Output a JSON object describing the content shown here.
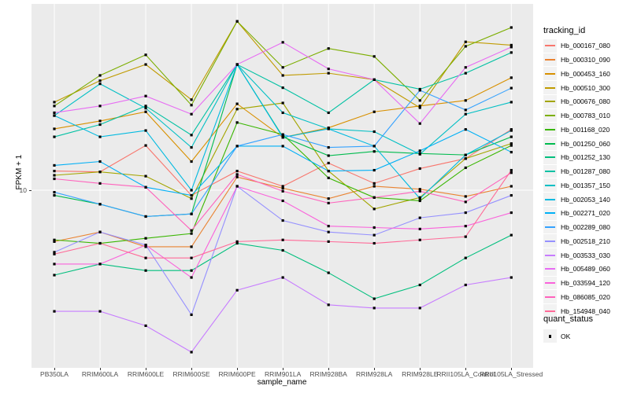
{
  "chart_data": {
    "type": "line",
    "title": "",
    "xlabel": "sample_name",
    "ylabel": "FPKM + 1",
    "y_scale": "log10",
    "y_ticks": [
      10
    ],
    "y_axis_range_fpkm": [
      1.7,
      64
    ],
    "grid": "major-on",
    "panel_bg": "#EBEBEB",
    "grid_color": "#FFFFFF",
    "point_color": "#000000",
    "point_shape": "square",
    "legend_title": "tracking_id",
    "legend2_title": "quant_status",
    "quant_status_value": "OK",
    "x_categories": [
      "PB350LA",
      "RRIM600LA",
      "RRIM600LE",
      "RRIM600SE",
      "RRIM600PE",
      "RRIM901LA",
      "RRIM928BA",
      "RRIM928LA",
      "RRIM928LE",
      "RRII105LA_Control",
      "RRII105LA_Stressed"
    ],
    "series": [
      {
        "name": "Hb_000167_080",
        "color": "#F8766D",
        "values": [
          12.1,
          12.0,
          15.6,
          9.5,
          12.1,
          10.4,
          13.1,
          10.7,
          12.4,
          13.7,
          18.3
        ]
      },
      {
        "name": "Hb_000310_090",
        "color": "#EA8331",
        "values": [
          6.0,
          6.6,
          5.7,
          5.7,
          11.4,
          10.2,
          9.2,
          10.4,
          10.1,
          9.4,
          10.4
        ]
      },
      {
        "name": "Hb_000453_160",
        "color": "#D89000",
        "values": [
          18.4,
          19.9,
          21.8,
          13.3,
          23.6,
          16.9,
          18.6,
          21.8,
          23.1,
          24.4,
          30.6
        ]
      },
      {
        "name": "Hb_000510_300",
        "color": "#C09B00",
        "values": [
          24.0,
          29.7,
          34.9,
          24.6,
          53.6,
          31.3,
          32.0,
          30.0,
          22.7,
          43.7,
          42.3
        ]
      },
      {
        "name": "Hb_000676_080",
        "color": "#A3A500",
        "values": [
          11.6,
          12.0,
          11.5,
          9.2,
          22.4,
          23.8,
          12.1,
          8.3,
          9.3,
          13.7,
          15.9
        ]
      },
      {
        "name": "Hb_000783_010",
        "color": "#7CAE00",
        "values": [
          23.1,
          31.3,
          38.4,
          23.3,
          53.6,
          33.9,
          40.9,
          37.8,
          24.4,
          41.8,
          50.4
        ]
      },
      {
        "name": "Hb_001168_020",
        "color": "#39B600",
        "values": [
          6.1,
          5.9,
          6.2,
          6.5,
          19.6,
          17.4,
          11.3,
          9.3,
          9.0,
          12.5,
          15.6
        ]
      },
      {
        "name": "Hb_001250_060",
        "color": "#00BB4E",
        "values": [
          9.5,
          8.7,
          7.7,
          7.9,
          34.9,
          17.0,
          14.1,
          14.7,
          14.4,
          14.2,
          17.0
        ]
      },
      {
        "name": "Hb_001252_130",
        "color": "#00BF7D",
        "values": [
          4.3,
          4.8,
          4.5,
          4.5,
          5.9,
          5.5,
          4.4,
          3.4,
          3.9,
          5.1,
          6.4
        ]
      },
      {
        "name": "Hb_001287_080",
        "color": "#00C1A3",
        "values": [
          17.0,
          19.2,
          23.1,
          17.3,
          34.9,
          27.7,
          21.6,
          30.0,
          27.3,
          32.0,
          39.3
        ]
      },
      {
        "name": "Hb_001357_150",
        "color": "#00BFC4",
        "values": [
          21.0,
          28.8,
          22.6,
          15.3,
          34.9,
          21.6,
          18.4,
          17.9,
          14.3,
          21.3,
          24.0
        ]
      },
      {
        "name": "Hb_002053_140",
        "color": "#00BAE0",
        "values": [
          21.0,
          17.0,
          18.1,
          10.0,
          34.9,
          16.9,
          18.4,
          15.5,
          9.2,
          14.2,
          18.1
        ]
      },
      {
        "name": "Hb_002271_020",
        "color": "#00B0F6",
        "values": [
          12.8,
          13.3,
          10.3,
          9.5,
          15.5,
          15.5,
          12.1,
          12.2,
          14.8,
          18.3,
          14.6
        ]
      },
      {
        "name": "Hb_002289_080",
        "color": "#35A2FF",
        "values": [
          9.8,
          8.7,
          7.7,
          7.9,
          15.5,
          17.4,
          15.3,
          15.5,
          27.0,
          22.2,
          27.6
        ]
      },
      {
        "name": "Hb_002518_210",
        "color": "#9590FF",
        "values": [
          5.4,
          6.6,
          5.8,
          2.9,
          10.4,
          7.4,
          6.6,
          6.4,
          7.6,
          8.0,
          9.5
        ]
      },
      {
        "name": "Hb_003533_030",
        "color": "#C77CFF",
        "values": [
          3.0,
          3.0,
          2.6,
          2.0,
          3.7,
          4.2,
          3.2,
          3.1,
          3.1,
          3.9,
          4.2
        ]
      },
      {
        "name": "Hb_005489_060",
        "color": "#E76BF3",
        "values": [
          21.6,
          23.1,
          25.5,
          21.3,
          34.9,
          43.5,
          33.4,
          30.0,
          19.4,
          33.9,
          41.5
        ]
      },
      {
        "name": "Hb_033594_120",
        "color": "#FA62DB",
        "values": [
          4.8,
          4.8,
          5.8,
          4.2,
          10.4,
          9.0,
          7.0,
          6.9,
          6.8,
          7.0,
          8.0
        ]
      },
      {
        "name": "Hb_086085_020",
        "color": "#FF62BC",
        "values": [
          11.2,
          10.7,
          10.3,
          6.7,
          11.7,
          9.9,
          8.8,
          9.3,
          9.9,
          8.9,
          11.9
        ]
      },
      {
        "name": "Hb_154948_040",
        "color": "#FF6A98",
        "values": [
          5.3,
          5.9,
          5.1,
          5.1,
          6.0,
          6.1,
          6.0,
          5.9,
          6.1,
          6.3,
          12.2
        ]
      }
    ]
  }
}
